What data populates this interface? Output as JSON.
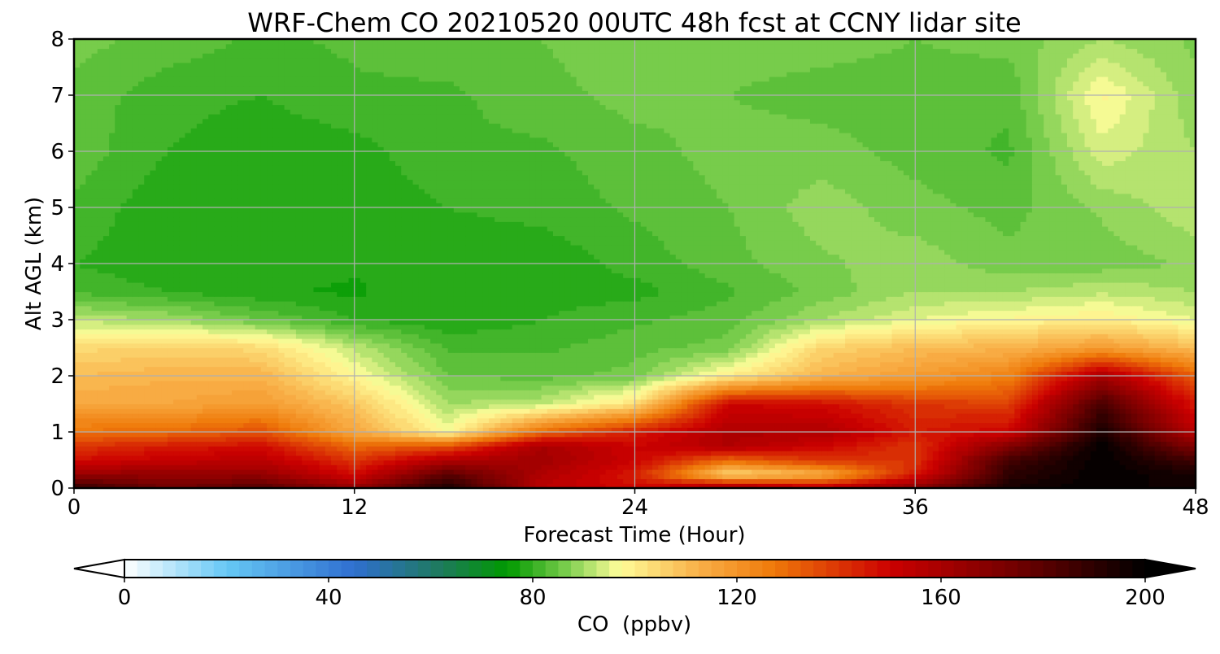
{
  "chart_data": {
    "type": "heatmap",
    "title": "WRF-Chem CO  20210520 00UTC 48h fcst at CCNY lidar site",
    "xlabel": "Forecast Time (Hour)",
    "ylabel": "Alt AGL (km)",
    "xlim": [
      0,
      48
    ],
    "ylim": [
      0,
      8
    ],
    "x_ticks": [
      0,
      12,
      24,
      36,
      48
    ],
    "y_ticks": [
      0,
      1,
      2,
      3,
      4,
      5,
      6,
      7,
      8
    ],
    "grid": true,
    "colorbar": {
      "label": "CO  (ppbv)",
      "range": [
        0,
        200
      ],
      "ticks": [
        0,
        40,
        80,
        120,
        160,
        200
      ],
      "extend": "both",
      "anchors": [
        {
          "v": 0,
          "c": "#ffffff"
        },
        {
          "v": 20,
          "c": "#66c8f5"
        },
        {
          "v": 45,
          "c": "#2f6fd0"
        },
        {
          "v": 62,
          "c": "#1e7a5c"
        },
        {
          "v": 75,
          "c": "#009900"
        },
        {
          "v": 87,
          "c": "#7fcf50"
        },
        {
          "v": 97,
          "c": "#fffd99"
        },
        {
          "v": 112,
          "c": "#f9b24a"
        },
        {
          "v": 127,
          "c": "#ef7a0a"
        },
        {
          "v": 150,
          "c": "#cc0000"
        },
        {
          "v": 175,
          "c": "#700000"
        },
        {
          "v": 200,
          "c": "#000000"
        }
      ]
    },
    "grid_x_hours": [
      0,
      4,
      8,
      12,
      16,
      20,
      24,
      28,
      32,
      36,
      40,
      44,
      48
    ],
    "grid_y_km": [
      0,
      0.25,
      0.5,
      0.75,
      1,
      1.5,
      2,
      2.5,
      3,
      3.5,
      4,
      5,
      6,
      7,
      8
    ],
    "values_ppbv": [
      [
        190,
        175,
        182,
        165,
        195,
        155,
        148,
        165,
        155,
        168,
        195,
        200,
        195
      ],
      [
        165,
        165,
        165,
        148,
        180,
        158,
        145,
        103,
        112,
        145,
        190,
        200,
        195
      ],
      [
        148,
        152,
        155,
        140,
        158,
        162,
        150,
        130,
        140,
        140,
        185,
        200,
        185
      ],
      [
        140,
        145,
        148,
        130,
        135,
        160,
        150,
        158,
        150,
        140,
        170,
        200,
        170
      ],
      [
        128,
        130,
        135,
        115,
        97,
        130,
        145,
        158,
        158,
        145,
        150,
        195,
        155
      ],
      [
        115,
        115,
        118,
        108,
        90,
        92,
        103,
        150,
        148,
        140,
        138,
        185,
        145
      ],
      [
        110,
        112,
        112,
        98,
        85,
        84,
        86,
        100,
        112,
        118,
        125,
        160,
        132
      ],
      [
        104,
        106,
        104,
        92,
        82,
        82,
        84,
        86,
        105,
        110,
        112,
        118,
        110
      ],
      [
        92,
        90,
        85,
        80,
        78,
        80,
        82,
        84,
        90,
        95,
        98,
        100,
        95
      ],
      [
        82,
        80,
        78,
        77,
        80,
        79,
        79,
        82,
        86,
        90,
        90,
        92,
        90
      ],
      [
        80,
        78,
        79,
        78,
        78,
        78,
        81,
        84,
        87,
        89,
        86,
        86,
        88
      ],
      [
        82,
        78,
        78,
        78,
        80,
        81,
        83,
        85,
        89,
        86,
        84,
        88,
        92
      ],
      [
        84,
        80,
        78,
        79,
        82,
        82,
        84,
        86,
        86,
        84,
        82,
        94,
        90
      ],
      [
        84,
        81,
        80,
        82,
        82,
        84,
        86,
        85,
        84,
        84,
        83,
        98,
        88
      ],
      [
        86,
        84,
        82,
        83,
        84,
        85,
        87,
        86,
        86,
        85,
        86,
        90,
        87
      ]
    ]
  }
}
